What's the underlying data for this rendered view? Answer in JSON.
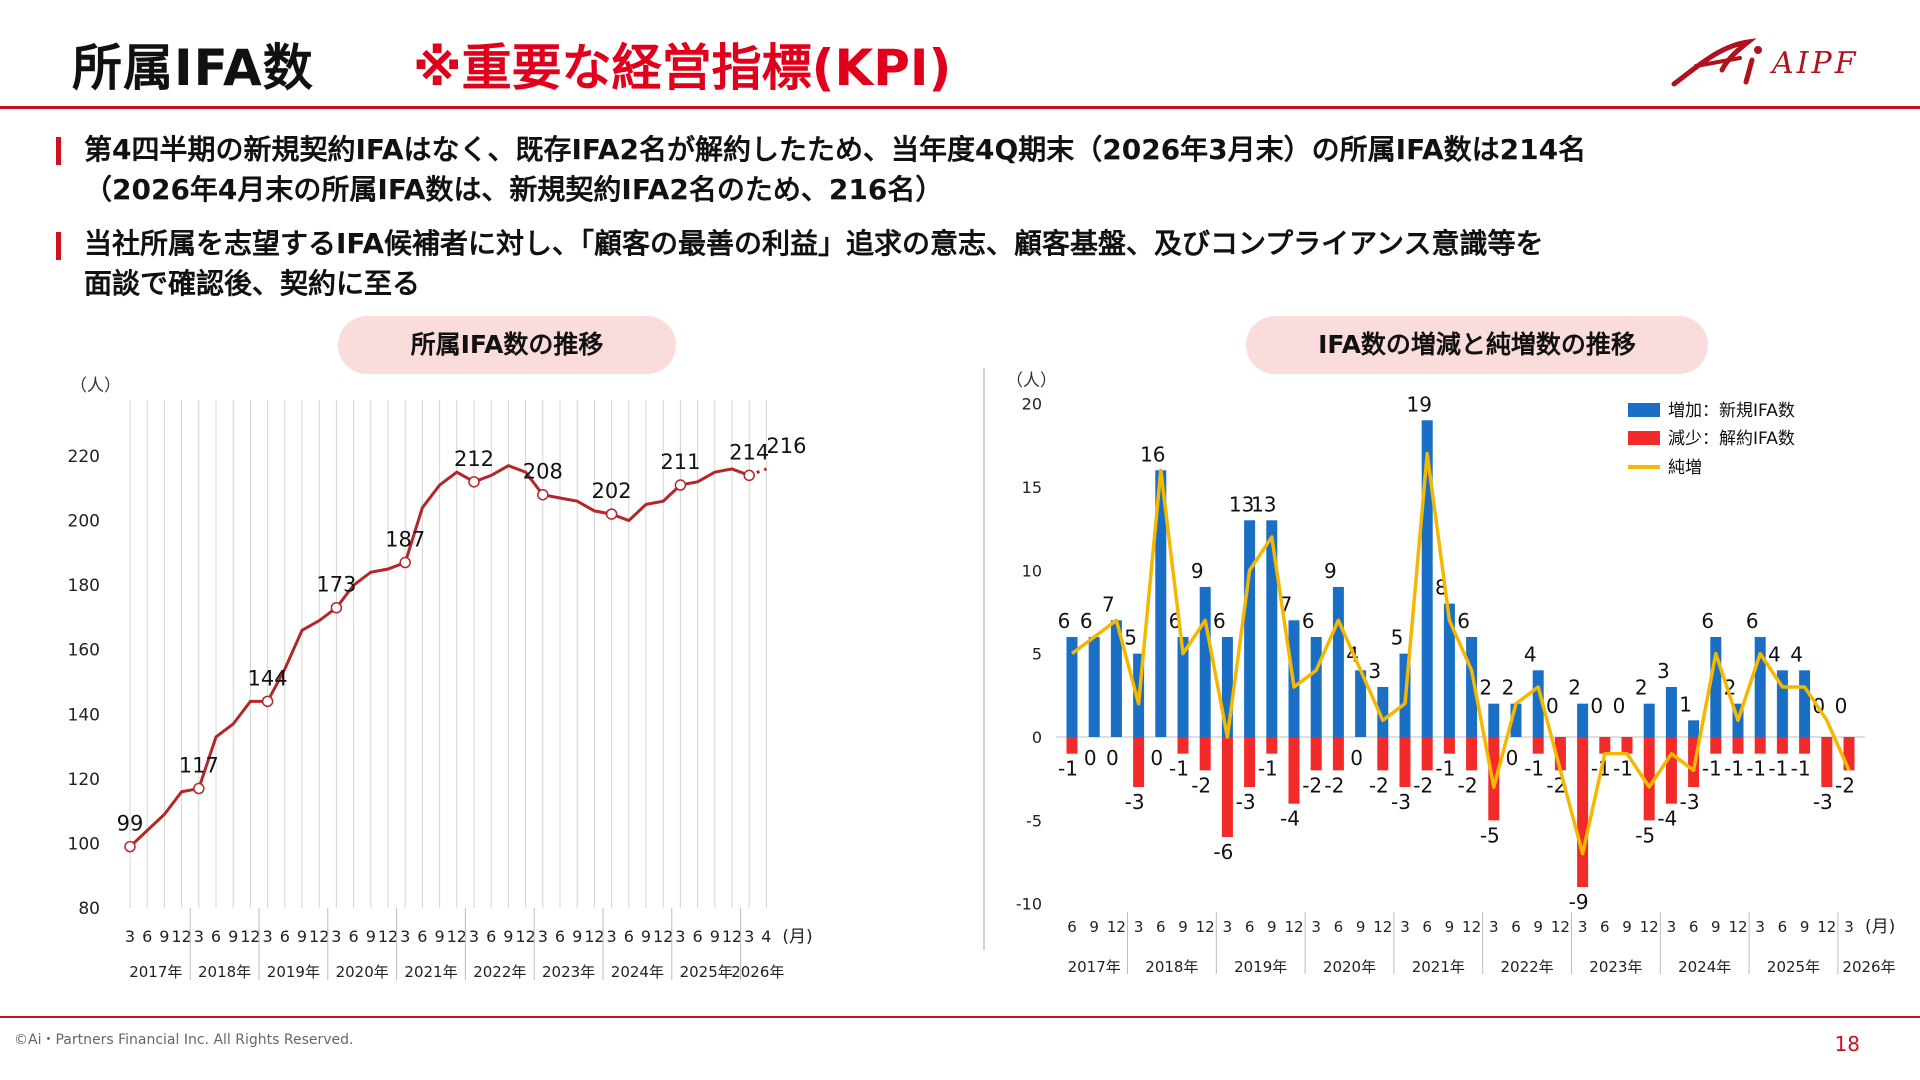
{
  "header": {
    "title": "所属IFA数",
    "emphasis": "※重要な経営指標(KPI)",
    "logo_text": "AIPF"
  },
  "bullets": [
    {
      "line1": "第4四半期の新規契約IFAはなく、既存IFA2名が解約したため、当年度4Q期末（2026年3月末）の所属IFA数は214名",
      "line2": "（2026年4月末の所属IFA数は、新規契約IFA2名のため、216名）"
    },
    {
      "line1": "当社所属を志望するIFA候補者に対し、「顧客の最善の利益」追求の意志、顧客基盤、及びコンプライアンス意識等を",
      "line2": "面談で確認後、契約に至る"
    }
  ],
  "footer": {
    "copyright": "©Ai・Partners Financial Inc. All Rights Reserved.",
    "page": "18"
  },
  "chart_data": [
    {
      "type": "line",
      "title": "所属IFA数の推移",
      "yunit": "（人）",
      "xunit": "(月)",
      "ylim": [
        80,
        220
      ],
      "yticks": [
        80,
        100,
        120,
        140,
        160,
        180,
        200,
        220
      ],
      "month_labels": [
        "3",
        "6",
        "9",
        "12",
        "3",
        "6",
        "9",
        "12",
        "3",
        "6",
        "9",
        "12",
        "3",
        "6",
        "9",
        "12",
        "3",
        "6",
        "9",
        "12",
        "3",
        "6",
        "9",
        "12",
        "3",
        "6",
        "9",
        "12",
        "3",
        "6",
        "9",
        "12",
        "3",
        "6",
        "9",
        "12",
        "3",
        "4"
      ],
      "year_labels": [
        "2017年",
        "2018年",
        "2019年",
        "2020年",
        "2021年",
        "2022年",
        "2023年",
        "2024年",
        "2025年",
        "2026年"
      ],
      "series": [
        {
          "values": [
            99,
            104,
            109,
            116,
            117,
            133,
            137,
            144,
            144,
            154,
            166,
            169,
            173,
            180,
            184,
            185,
            187,
            204,
            211,
            215,
            212,
            214,
            217,
            215,
            208,
            207,
            206,
            203,
            202,
            200,
            205,
            206,
            211,
            212,
            215,
            216,
            214,
            216
          ]
        }
      ],
      "data_labels": {
        "0": "99",
        "4": "117",
        "8": "144",
        "12": "173",
        "16": "187",
        "20": "212",
        "24": "208",
        "28": "202",
        "32": "211",
        "36": "214",
        "37": "216"
      },
      "grid": true
    },
    {
      "type": "bar",
      "title": "IFA数の増減と純増数の推移",
      "yunit": "（人）",
      "xunit": "(月)",
      "ylim": [
        -10,
        20
      ],
      "yticks": [
        -10,
        -5,
        0,
        5,
        10,
        15,
        20
      ],
      "month_labels": [
        "6",
        "9",
        "12",
        "3",
        "6",
        "9",
        "12",
        "3",
        "6",
        "9",
        "12",
        "3",
        "6",
        "9",
        "12",
        "3",
        "6",
        "9",
        "12",
        "3",
        "6",
        "9",
        "12",
        "3",
        "6",
        "9",
        "12",
        "3",
        "6",
        "9",
        "12",
        "3",
        "6",
        "9",
        "12",
        "3"
      ],
      "year_labels": [
        "2017年",
        "2018年",
        "2019年",
        "2020年",
        "2021年",
        "2022年",
        "2023年",
        "2024年",
        "2025年",
        "2026年"
      ],
      "series": [
        {
          "name": "増加：新規IFA数",
          "color": "#1a6fc4",
          "values": [
            6,
            6,
            7,
            5,
            16,
            6,
            9,
            6,
            13,
            13,
            7,
            6,
            9,
            4,
            3,
            5,
            19,
            8,
            6,
            2,
            2,
            4,
            0,
            2,
            0,
            0,
            2,
            3,
            1,
            6,
            2,
            6,
            4,
            4,
            0,
            0
          ]
        },
        {
          "name": "減少：解約IFA数",
          "color": "#f22a2a",
          "values": [
            -1,
            0,
            0,
            -3,
            0,
            -1,
            -2,
            -6,
            -3,
            -1,
            -4,
            -2,
            -2,
            0,
            -2,
            -3,
            -2,
            -1,
            -2,
            -5,
            0,
            -1,
            -2,
            -9,
            -1,
            -1,
            -5,
            -4,
            -3,
            -1,
            -1,
            -1,
            -1,
            -1,
            -3,
            -2
          ]
        },
        {
          "name": "純増",
          "color": "#f5b800",
          "values": [
            5,
            6,
            7,
            2,
            16,
            5,
            7,
            0,
            10,
            12,
            3,
            4,
            7,
            4,
            1,
            2,
            17,
            7,
            4,
            -3,
            2,
            3,
            -2,
            -7,
            -1,
            -1,
            -3,
            -1,
            -2,
            5,
            1,
            5,
            3,
            3,
            1,
            -2
          ]
        }
      ],
      "grid": false
    }
  ]
}
